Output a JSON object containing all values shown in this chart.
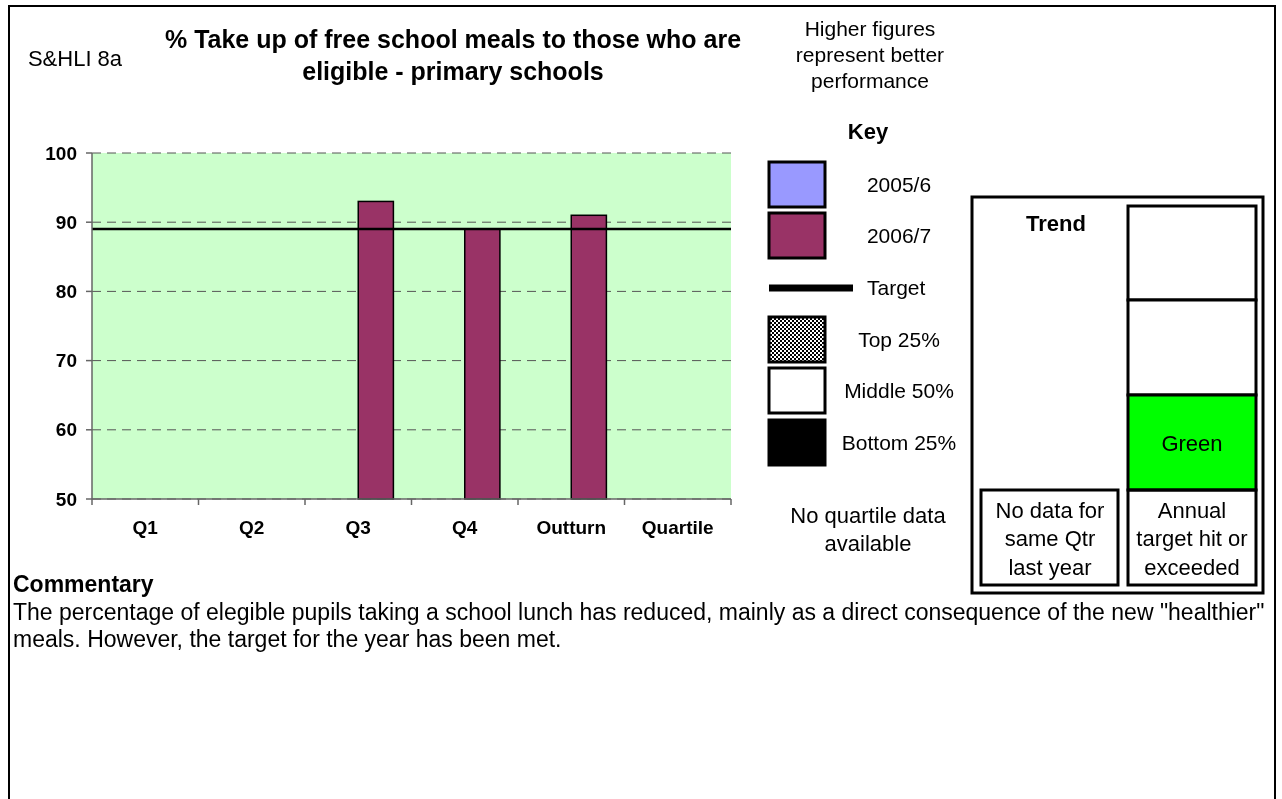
{
  "chart_data": {
    "type": "bar",
    "title": "% Take up of free school meals to those who are eligible - primary schools",
    "legend_title": "Key",
    "legend": "right",
    "grid": "y",
    "categories": [
      "Q1",
      "Q2",
      "Q3",
      "Q4",
      "Outturn",
      "Quartile"
    ],
    "series": [
      {
        "name": "2005/6",
        "color": "#9999ff",
        "values": [
          null,
          null,
          null,
          null,
          null,
          null
        ]
      },
      {
        "name": "2006/7",
        "color": "#993366",
        "values": [
          null,
          null,
          93,
          89,
          91,
          null
        ]
      }
    ],
    "ylim": [
      50,
      100
    ],
    "yticks": [
      50,
      60,
      70,
      80,
      90,
      100
    ],
    "ref_lines": [
      {
        "axis": "y",
        "value": 89,
        "label": "Target",
        "color": "#000000"
      }
    ],
    "annotations": [
      "S&HLI 8a",
      "Higher figures represent better performance",
      "Top 25%",
      "Middle 50%",
      "Bottom 25%",
      "No quartile data available",
      "Trend",
      "No data for same Qtr last year",
      "Green",
      "Annual target hit or exceeded",
      "Commentary",
      "The percentage of elegible pupils taking a school lunch has reduced, mainly as a direct consequence of the new \"healthier\" meals. However, the target for the year has been met."
    ]
  }
}
